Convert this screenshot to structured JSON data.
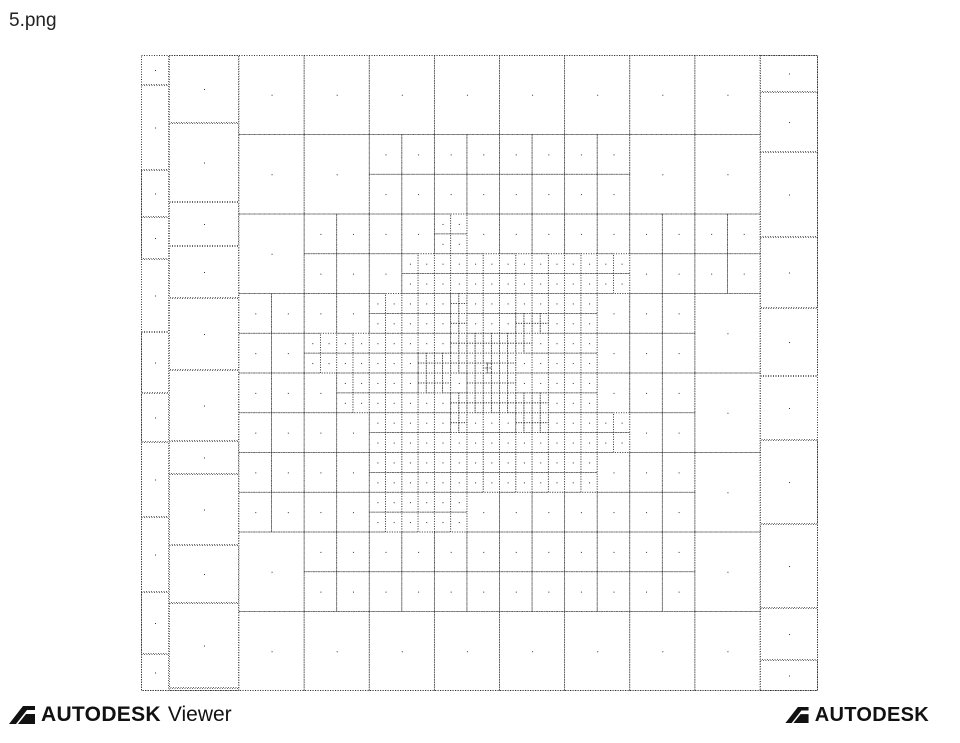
{
  "window": {
    "title": "5.png"
  },
  "viewer": {
    "content": "quadtree-mesh-drawing"
  },
  "footer": {
    "left_brand": "AUTODESK",
    "left_product": "Viewer",
    "right_brand": "AUTODESK"
  },
  "colors": {
    "background": "#ffffff",
    "mesh_line": "#333333",
    "brand_text": "#111111"
  }
}
